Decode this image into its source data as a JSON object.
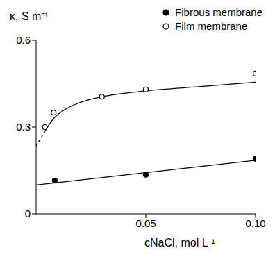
{
  "chart_data": {
    "type": "scatter",
    "x_label": "cNaCl, mol L⁻¹",
    "y_label": "κ, S m⁻¹",
    "xlim": [
      0,
      0.1
    ],
    "xticks": [
      {
        "value": 0.05,
        "label": "0.05"
      },
      {
        "value": 0.1,
        "label": "0.10"
      }
    ],
    "ylim": [
      0,
      0.6
    ],
    "yticks": [
      0,
      0.3,
      0.6
    ],
    "legend": "top right",
    "grid": false,
    "series": [
      {
        "name": "Fibrous membrane",
        "color": "#000000",
        "marker": "filled circle",
        "x": [
          0.0085,
          0.05,
          0.1
        ],
        "values": [
          0.115,
          0.135,
          0.19
        ],
        "fit": {
          "x": [
            0,
            0.1
          ],
          "values": [
            0.1,
            0.185
          ]
        }
      },
      {
        "name": "Film membrane",
        "color": "#000000",
        "marker": "open circle",
        "x": [
          0.004,
          0.008,
          0.03,
          0.05,
          0.1
        ],
        "values": [
          0.3,
          0.35,
          0.405,
          0.43,
          0.485
        ],
        "fit": {
          "x": [
            0.004,
            0.008,
            0.012,
            0.02,
            0.03,
            0.05,
            0.075,
            0.1
          ],
          "values": [
            0.285,
            0.33,
            0.355,
            0.385,
            0.405,
            0.425,
            0.44,
            0.455
          ]
        },
        "extrapolation": {
          "x": [
            0,
            0.004
          ],
          "values": [
            0.235,
            0.285
          ]
        }
      }
    ]
  }
}
